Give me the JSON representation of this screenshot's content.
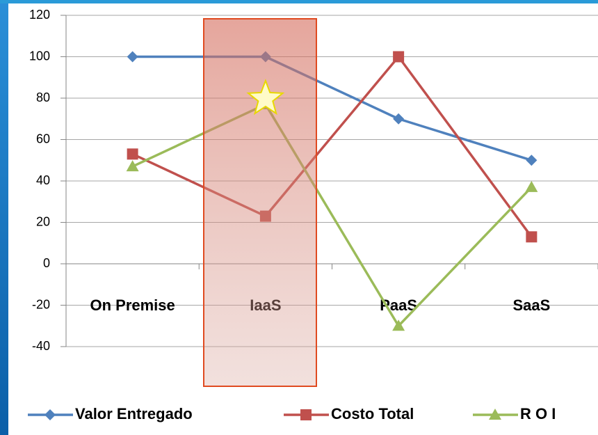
{
  "chart_data": {
    "type": "line",
    "categories": [
      "On Premise",
      "IaaS",
      "PaaS",
      "SaaS"
    ],
    "series": [
      {
        "name": "Valor Entregado",
        "color": "#4f81bd",
        "values": [
          100,
          100,
          70,
          50
        ]
      },
      {
        "name": "Costo Total",
        "color": "#c0504d",
        "values": [
          53,
          23,
          100,
          13
        ]
      },
      {
        "name": "R O I",
        "color": "#9bbb59",
        "values": [
          47,
          77,
          -30,
          37
        ]
      }
    ],
    "ylim": [
      -40,
      120
    ],
    "yticks": [
      -40,
      -20,
      0,
      20,
      40,
      60,
      80,
      100,
      120
    ],
    "grid": true,
    "legend": "bottom"
  }
}
